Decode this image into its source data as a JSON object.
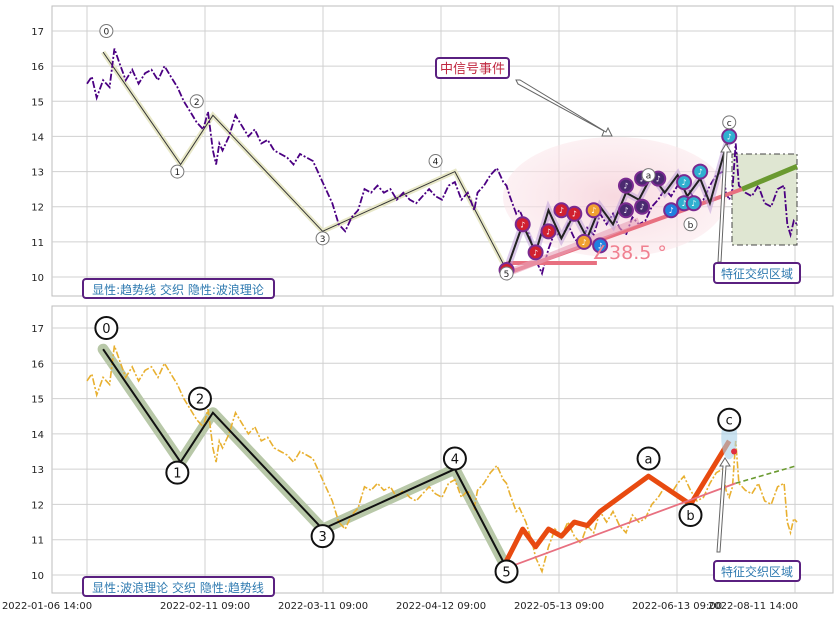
{
  "chart_data": [
    {
      "type": "line",
      "panel": "top",
      "ylim": [
        9.6,
        17.6
      ],
      "yticks": [
        10,
        11,
        12,
        13,
        14,
        15,
        16,
        17
      ],
      "series_price": {
        "color": "#4b0082",
        "style": "dash-dot",
        "points": [
          [
            0.0,
            15.5
          ],
          [
            1.5,
            15.7
          ],
          [
            3,
            15.1
          ],
          [
            5,
            15.6
          ],
          [
            7,
            15.4
          ],
          [
            8.5,
            16.5
          ],
          [
            10,
            16.1
          ],
          [
            12,
            15.6
          ],
          [
            14,
            15.9
          ],
          [
            16,
            15.5
          ],
          [
            18,
            15.8
          ],
          [
            20,
            15.9
          ],
          [
            22,
            15.6
          ],
          [
            24,
            16.0
          ],
          [
            26,
            15.7
          ],
          [
            28,
            15.4
          ],
          [
            30,
            15.0
          ],
          [
            32,
            14.7
          ],
          [
            34,
            14.4
          ],
          [
            36,
            14.2
          ],
          [
            37.5,
            14.7
          ],
          [
            39,
            13.6
          ],
          [
            40,
            13.2
          ],
          [
            41,
            13.8
          ],
          [
            42,
            13.6
          ],
          [
            44,
            14.0
          ],
          [
            46,
            14.6
          ],
          [
            48,
            14.3
          ],
          [
            50,
            14.0
          ],
          [
            52,
            14.2
          ],
          [
            54,
            13.8
          ],
          [
            56,
            13.9
          ],
          [
            58,
            13.6
          ],
          [
            60,
            13.5
          ],
          [
            62,
            13.4
          ],
          [
            64,
            13.2
          ],
          [
            66,
            13.5
          ],
          [
            68,
            13.4
          ],
          [
            70,
            13.3
          ],
          [
            72,
            12.9
          ],
          [
            74,
            12.5
          ],
          [
            76,
            12.1
          ],
          [
            78,
            11.5
          ],
          [
            80,
            11.3
          ],
          [
            82,
            11.7
          ],
          [
            84,
            11.9
          ],
          [
            86,
            12.5
          ],
          [
            88,
            12.4
          ],
          [
            90,
            12.6
          ],
          [
            92,
            12.4
          ],
          [
            94,
            12.5
          ],
          [
            96,
            12.2
          ],
          [
            98,
            12.4
          ],
          [
            100,
            12.2
          ],
          [
            102,
            12.1
          ],
          [
            104,
            12.3
          ],
          [
            106,
            12.5
          ],
          [
            108,
            12.3
          ],
          [
            110,
            12.2
          ],
          [
            112,
            12.6
          ],
          [
            114,
            12.7
          ],
          [
            116,
            12.2
          ],
          [
            118,
            12.4
          ],
          [
            120,
            11.9
          ],
          [
            121,
            12.4
          ],
          [
            123,
            12.6
          ],
          [
            125,
            12.9
          ],
          [
            127,
            13.1
          ],
          [
            129,
            12.7
          ],
          [
            130,
            12.6
          ],
          [
            131,
            12.3
          ],
          [
            133,
            11.8
          ],
          [
            134,
            11.9
          ],
          [
            136,
            11.5
          ],
          [
            138,
            10.9
          ],
          [
            139,
            10.5
          ],
          [
            140,
            10.3
          ],
          [
            141,
            10.1
          ],
          [
            143,
            10.8
          ],
          [
            145,
            11.3
          ],
          [
            147,
            11.1
          ],
          [
            149,
            11.5
          ],
          [
            151,
            11.1
          ],
          [
            153,
            10.9
          ],
          [
            155,
            11.4
          ],
          [
            157,
            11.2
          ],
          [
            159,
            11.8
          ],
          [
            161,
            11.5
          ],
          [
            163,
            11.8
          ],
          [
            165,
            11.4
          ],
          [
            167,
            11.2
          ],
          [
            169,
            11.7
          ],
          [
            171,
            11.5
          ],
          [
            173,
            11.6
          ],
          [
            175,
            12.0
          ],
          [
            177,
            12.2
          ],
          [
            179,
            12.5
          ],
          [
            181,
            12.3
          ],
          [
            183,
            12.6
          ],
          [
            185,
            12.8
          ],
          [
            187,
            12.4
          ],
          [
            189,
            12.1
          ],
          [
            191,
            12.2
          ],
          [
            193,
            12.6
          ],
          [
            195,
            12.9
          ],
          [
            197,
            13.0
          ],
          [
            198,
            12.4
          ],
          [
            199,
            12.2
          ],
          [
            200,
            12.5
          ],
          [
            201,
            13.8
          ],
          [
            202,
            12.6
          ],
          [
            204,
            12.4
          ],
          [
            206,
            12.3
          ],
          [
            208,
            12.6
          ],
          [
            210,
            12.1
          ],
          [
            212,
            12.0
          ],
          [
            214,
            12.5
          ],
          [
            216,
            12.6
          ],
          [
            217,
            11.5
          ],
          [
            218,
            11.2
          ],
          [
            219,
            11.6
          ],
          [
            220,
            11.5
          ]
        ]
      },
      "wave_labels": [
        {
          "label": "0",
          "x": 6,
          "y": 17.0
        },
        {
          "label": "1",
          "x": 28,
          "y": 13.0
        },
        {
          "label": "2",
          "x": 34,
          "y": 15.0
        },
        {
          "label": "3",
          "x": 73,
          "y": 11.1
        },
        {
          "label": "4",
          "x": 108,
          "y": 13.3
        },
        {
          "label": "5",
          "x": 130,
          "y": 10.1
        },
        {
          "label": "a",
          "x": 174,
          "y": 12.9
        },
        {
          "label": "b",
          "x": 187,
          "y": 11.5
        },
        {
          "label": "c",
          "x": 199,
          "y": 14.4
        }
      ],
      "wave_path": [
        [
          5,
          16.4
        ],
        [
          29,
          13.2
        ],
        [
          39,
          14.6
        ],
        [
          73,
          11.3
        ],
        [
          114,
          13.0
        ],
        [
          130,
          10.2
        ]
      ],
      "annotation": "中信号事件",
      "angle_label": "∠38.5 °",
      "left_box_text": "显性:趋势线 交织 隐性:波浪理论",
      "right_box_text": "特征交织区域"
    },
    {
      "type": "line",
      "panel": "bottom",
      "ylim": [
        9.6,
        17.6
      ],
      "yticks": [
        10,
        11,
        12,
        13,
        14,
        15,
        16,
        17
      ],
      "series_price": {
        "color": "#e8b030",
        "style": "dash-dot"
      },
      "wave_labels": [
        {
          "label": "0",
          "x": 6,
          "y": 17.0
        },
        {
          "label": "1",
          "x": 29,
          "y": 12.9
        },
        {
          "label": "2",
          "x": 39,
          "y": 15.0
        },
        {
          "label": "3",
          "x": 73,
          "y": 11.1
        },
        {
          "label": "4",
          "x": 114,
          "y": 13.3
        },
        {
          "label": "5",
          "x": 130,
          "y": 10.1
        },
        {
          "label": "a",
          "x": 174,
          "y": 13.3
        },
        {
          "label": "b",
          "x": 187,
          "y": 11.7
        },
        {
          "label": "c",
          "x": 199,
          "y": 14.4
        }
      ],
      "left_box_text": "显性:波浪理论 交织 隐性:趋势线",
      "right_box_text": "特征交织区域"
    }
  ],
  "x_axis": {
    "tick_labels": [
      "2022-01-06 14:00",
      "2022-02-11 09:00",
      "2022-03-11 09:00",
      "2022-04-12 09:00",
      "2022-05-13 09:00",
      "2022-06-13 09:00",
      "2022-08-11 14:00"
    ]
  },
  "colors": {
    "grid": "#d0d0d0",
    "box_border": "#5a2080",
    "box_text": "#2f7ab0",
    "orange_wave": "#e84a10",
    "trend_pink": "#e87080",
    "trend_green": "#6a9a30",
    "shade_green": "#c8d8b0",
    "wave_shade": "#b8c8a8"
  }
}
